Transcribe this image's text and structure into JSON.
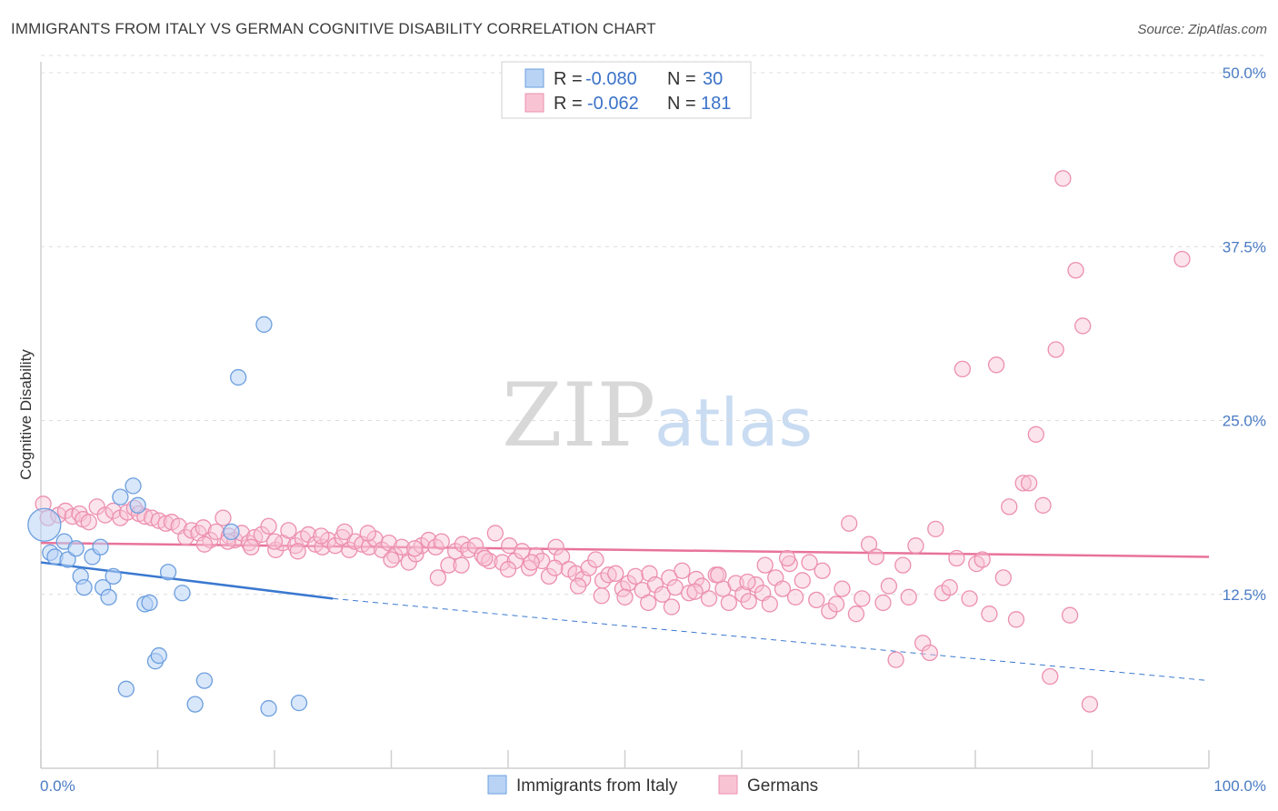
{
  "title": "IMMIGRANTS FROM ITALY VS GERMAN COGNITIVE DISABILITY CORRELATION CHART",
  "source": "Source: ZipAtlas.com",
  "watermark": {
    "zip": "ZIP",
    "atlas": "atlas"
  },
  "colors": {
    "italy_fill": "#b9d3f5",
    "italy_stroke": "#6c9fdf",
    "italy_line": "#3a78d0",
    "german_fill": "#f8c4d4",
    "german_stroke": "#ec8fb0",
    "german_line": "#e8739a",
    "tick_text": "#4a7cc4",
    "grid": "#dcdcdc"
  },
  "legend": {
    "rows": [
      {
        "r_label": "R =",
        "r_value": "-0.080",
        "n_label": "N =",
        "n_value": "30"
      },
      {
        "r_label": "R =",
        "r_value": "-0.062",
        "n_label": "N =",
        "n_value": "181"
      }
    ]
  },
  "chart_data": {
    "type": "scatter",
    "title": "IMMIGRANTS FROM ITALY VS GERMAN COGNITIVE DISABILITY CORRELATION CHART",
    "xlabel": "",
    "ylabel": "Cognitive Disability",
    "xlim": [
      0,
      100
    ],
    "ylim": [
      0,
      50
    ],
    "x_tick_labels": [
      "0.0%",
      "100.0%"
    ],
    "y_ticks": [
      12.5,
      25.0,
      37.5,
      50.0
    ],
    "y_tick_labels": [
      "12.5%",
      "25.0%",
      "37.5%",
      "50.0%"
    ],
    "grid": true,
    "legend_position": "top-center",
    "series": [
      {
        "name": "Immigrants from Italy",
        "color": "#6c9fdf",
        "trend": {
          "x": [
            0,
            25
          ],
          "y": [
            14.8,
            12.2
          ],
          "dashed_extension_to": [
            100,
            6.3
          ]
        },
        "points": [
          [
            0.3,
            17.5
          ],
          [
            0.8,
            15.5
          ],
          [
            1.2,
            15.2
          ],
          [
            2.0,
            16.3
          ],
          [
            2.3,
            15.0
          ],
          [
            3.0,
            15.8
          ],
          [
            3.4,
            13.8
          ],
          [
            3.7,
            13.0
          ],
          [
            4.4,
            15.2
          ],
          [
            5.1,
            15.9
          ],
          [
            5.3,
            13.0
          ],
          [
            5.8,
            12.3
          ],
          [
            6.2,
            13.8
          ],
          [
            6.8,
            19.5
          ],
          [
            7.3,
            5.7
          ],
          [
            7.9,
            20.3
          ],
          [
            8.3,
            18.9
          ],
          [
            8.9,
            11.8
          ],
          [
            9.3,
            11.9
          ],
          [
            9.8,
            7.7
          ],
          [
            10.1,
            8.1
          ],
          [
            10.9,
            14.1
          ],
          [
            12.1,
            12.6
          ],
          [
            13.2,
            4.6
          ],
          [
            14.0,
            6.3
          ],
          [
            16.3,
            17.0
          ],
          [
            16.9,
            28.1
          ],
          [
            19.1,
            31.9
          ],
          [
            19.5,
            4.3
          ],
          [
            22.1,
            4.7
          ]
        ]
      },
      {
        "name": "Germans",
        "color": "#ec8fb0",
        "trend": {
          "x": [
            0,
            100
          ],
          "y": [
            16.2,
            15.2
          ]
        },
        "points": [
          [
            0.2,
            19.0
          ],
          [
            0.6,
            18.0
          ],
          [
            1.5,
            18.2
          ],
          [
            2.1,
            18.5
          ],
          [
            2.7,
            18.1
          ],
          [
            3.3,
            18.3
          ],
          [
            3.6,
            17.9
          ],
          [
            4.1,
            17.7
          ],
          [
            4.8,
            18.8
          ],
          [
            5.5,
            18.2
          ],
          [
            6.2,
            18.5
          ],
          [
            6.8,
            18.0
          ],
          [
            7.4,
            18.4
          ],
          [
            8.0,
            18.7
          ],
          [
            8.4,
            18.3
          ],
          [
            8.9,
            18.1
          ],
          [
            9.5,
            18.0
          ],
          [
            10.1,
            17.8
          ],
          [
            10.7,
            17.6
          ],
          [
            11.2,
            17.7
          ],
          [
            11.8,
            17.4
          ],
          [
            12.4,
            16.6
          ],
          [
            12.9,
            17.1
          ],
          [
            13.5,
            16.9
          ],
          [
            13.9,
            17.3
          ],
          [
            14.5,
            16.4
          ],
          [
            15.0,
            17.0
          ],
          [
            15.6,
            18.0
          ],
          [
            16.1,
            16.7
          ],
          [
            16.6,
            16.4
          ],
          [
            17.2,
            16.9
          ],
          [
            17.8,
            16.2
          ],
          [
            18.3,
            16.6
          ],
          [
            18.9,
            16.8
          ],
          [
            19.5,
            17.4
          ],
          [
            20.1,
            15.7
          ],
          [
            20.7,
            16.2
          ],
          [
            21.2,
            17.1
          ],
          [
            21.8,
            16.0
          ],
          [
            22.4,
            16.5
          ],
          [
            22.9,
            16.8
          ],
          [
            23.5,
            16.1
          ],
          [
            24.1,
            15.9
          ],
          [
            24.6,
            16.4
          ],
          [
            25.2,
            16.0
          ],
          [
            25.8,
            16.6
          ],
          [
            26.4,
            15.7
          ],
          [
            26.9,
            16.3
          ],
          [
            27.5,
            16.1
          ],
          [
            28.1,
            15.9
          ],
          [
            28.6,
            16.5
          ],
          [
            29.2,
            15.7
          ],
          [
            29.8,
            16.2
          ],
          [
            30.3,
            15.3
          ],
          [
            30.9,
            15.9
          ],
          [
            31.5,
            14.8
          ],
          [
            32.1,
            15.4
          ],
          [
            32.6,
            16.0
          ],
          [
            33.2,
            16.4
          ],
          [
            33.8,
            15.9
          ],
          [
            34.3,
            16.3
          ],
          [
            34.9,
            14.6
          ],
          [
            35.5,
            15.6
          ],
          [
            36.1,
            16.1
          ],
          [
            36.6,
            15.7
          ],
          [
            37.2,
            16.0
          ],
          [
            37.8,
            15.3
          ],
          [
            38.4,
            14.9
          ],
          [
            38.9,
            16.9
          ],
          [
            39.5,
            14.8
          ],
          [
            40.1,
            16.0
          ],
          [
            40.6,
            14.9
          ],
          [
            41.2,
            15.6
          ],
          [
            41.8,
            14.4
          ],
          [
            42.4,
            15.3
          ],
          [
            42.9,
            14.9
          ],
          [
            43.5,
            13.8
          ],
          [
            44.1,
            15.9
          ],
          [
            44.6,
            15.2
          ],
          [
            45.2,
            14.3
          ],
          [
            45.8,
            14.0
          ],
          [
            46.4,
            13.6
          ],
          [
            46.9,
            14.4
          ],
          [
            47.5,
            15.0
          ],
          [
            48.1,
            13.5
          ],
          [
            48.6,
            13.9
          ],
          [
            49.2,
            14.0
          ],
          [
            49.8,
            12.9
          ],
          [
            50.3,
            13.3
          ],
          [
            50.9,
            13.8
          ],
          [
            51.5,
            12.8
          ],
          [
            52.1,
            14.0
          ],
          [
            52.6,
            13.2
          ],
          [
            53.2,
            12.5
          ],
          [
            53.8,
            13.7
          ],
          [
            54.3,
            13.0
          ],
          [
            54.9,
            14.2
          ],
          [
            55.5,
            12.6
          ],
          [
            56.1,
            13.6
          ],
          [
            56.6,
            13.1
          ],
          [
            57.2,
            12.2
          ],
          [
            57.8,
            13.9
          ],
          [
            58.4,
            12.9
          ],
          [
            58.9,
            11.9
          ],
          [
            59.5,
            13.3
          ],
          [
            60.1,
            12.5
          ],
          [
            60.6,
            12.0
          ],
          [
            61.2,
            13.2
          ],
          [
            61.8,
            12.6
          ],
          [
            62.4,
            11.8
          ],
          [
            62.9,
            13.7
          ],
          [
            63.5,
            12.9
          ],
          [
            64.1,
            14.7
          ],
          [
            64.6,
            12.3
          ],
          [
            65.2,
            13.5
          ],
          [
            65.8,
            14.8
          ],
          [
            66.4,
            12.1
          ],
          [
            66.9,
            14.2
          ],
          [
            67.5,
            11.3
          ],
          [
            68.1,
            11.8
          ],
          [
            68.6,
            12.9
          ],
          [
            69.2,
            17.6
          ],
          [
            69.8,
            11.1
          ],
          [
            70.3,
            12.2
          ],
          [
            70.9,
            16.1
          ],
          [
            71.5,
            15.2
          ],
          [
            72.1,
            11.9
          ],
          [
            72.6,
            13.1
          ],
          [
            73.2,
            7.8
          ],
          [
            73.8,
            14.6
          ],
          [
            74.3,
            12.3
          ],
          [
            74.9,
            16.0
          ],
          [
            75.5,
            9.0
          ],
          [
            76.1,
            8.3
          ],
          [
            76.6,
            17.2
          ],
          [
            77.2,
            12.6
          ],
          [
            77.8,
            13.0
          ],
          [
            78.4,
            15.1
          ],
          [
            78.9,
            28.7
          ],
          [
            79.5,
            12.2
          ],
          [
            80.1,
            14.7
          ],
          [
            80.6,
            15.0
          ],
          [
            81.2,
            11.1
          ],
          [
            81.8,
            29.0
          ],
          [
            82.4,
            13.7
          ],
          [
            82.9,
            18.8
          ],
          [
            83.5,
            10.7
          ],
          [
            84.1,
            20.5
          ],
          [
            84.6,
            20.5
          ],
          [
            85.2,
            24.0
          ],
          [
            85.8,
            18.9
          ],
          [
            86.4,
            6.6
          ],
          [
            86.9,
            30.1
          ],
          [
            87.5,
            42.4
          ],
          [
            88.1,
            11.0
          ],
          [
            88.6,
            35.8
          ],
          [
            89.2,
            31.8
          ],
          [
            89.8,
            4.6
          ],
          [
            97.7,
            36.6
          ],
          [
            63.9,
            15.1
          ],
          [
            62.0,
            14.6
          ],
          [
            60.5,
            13.4
          ],
          [
            58.0,
            13.9
          ],
          [
            56.0,
            12.7
          ],
          [
            54.0,
            11.6
          ],
          [
            52.0,
            11.9
          ],
          [
            50.0,
            12.3
          ],
          [
            48.0,
            12.4
          ],
          [
            46.0,
            13.1
          ],
          [
            44.0,
            14.4
          ],
          [
            42.0,
            14.8
          ],
          [
            40.0,
            14.3
          ],
          [
            38.0,
            15.1
          ],
          [
            36.0,
            14.6
          ],
          [
            34.0,
            13.7
          ],
          [
            32.0,
            15.8
          ],
          [
            30.0,
            15.0
          ],
          [
            28.0,
            16.9
          ],
          [
            26.0,
            17.0
          ],
          [
            24.0,
            16.7
          ],
          [
            22.0,
            15.6
          ],
          [
            20.0,
            16.3
          ],
          [
            18.0,
            15.9
          ],
          [
            16.0,
            16.3
          ],
          [
            14.0,
            16.1
          ]
        ]
      }
    ]
  },
  "x_axis": {
    "left_label": "0.0%",
    "right_label": "100.0%"
  },
  "y_axis": {
    "title": "Cognitive Disability"
  },
  "bottom_legend": [
    {
      "label": "Immigrants from Italy"
    },
    {
      "label": "Germans"
    }
  ]
}
